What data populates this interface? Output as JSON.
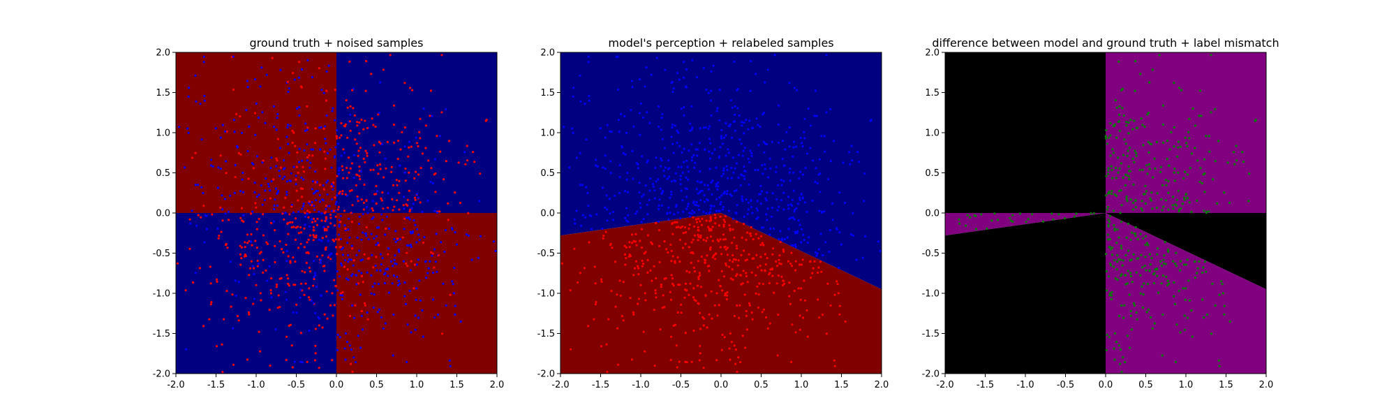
{
  "chart_data": [
    {
      "type": "scatter",
      "title": "ground truth + noised samples",
      "xlim": [
        -2.0,
        2.0
      ],
      "ylim": [
        -2.0,
        2.0
      ],
      "xticks": [
        "-2.0",
        "-1.5",
        "-1.0",
        "-0.5",
        "0.0",
        "0.5",
        "1.0",
        "1.5",
        "2.0"
      ],
      "yticks": [
        "-2.0",
        "-1.5",
        "-1.0",
        "-0.5",
        "0.0",
        "0.5",
        "1.0",
        "1.5",
        "2.0"
      ],
      "background": "quadrant sign(x*y): x*y<0 -> dark red, x*y>=0 -> dark blue",
      "regions": [
        {
          "quadrant": "upper-left",
          "color": "#800000"
        },
        {
          "quadrant": "upper-right",
          "color": "#000080"
        },
        {
          "quadrant": "lower-left",
          "color": "#000080"
        },
        {
          "quadrant": "lower-right",
          "color": "#800000"
        }
      ],
      "series": [
        {
          "color": "#ff0000",
          "n_points": 560,
          "distribution": "mostly in x*y>0 quadrants (upper-right, lower-left), denser near origin"
        },
        {
          "color": "#0000ff",
          "n_points": 560,
          "distribution": "mostly in x*y<0 quadrants (upper-left, lower-right), denser near origin"
        }
      ],
      "grid": false
    },
    {
      "type": "scatter",
      "title": "model's perception + relabeled samples",
      "xlim": [
        -2.0,
        2.0
      ],
      "ylim": [
        -2.0,
        2.0
      ],
      "xticks": [
        "-2.0",
        "-1.5",
        "-1.0",
        "-0.5",
        "0.0",
        "0.5",
        "1.0",
        "1.5",
        "2.0"
      ],
      "yticks": [
        "-2.0",
        "-1.5",
        "-1.0",
        "-0.5",
        "0.0",
        "0.5",
        "1.0",
        "1.5",
        "2.0"
      ],
      "decision_boundary": [
        [
          -2.0,
          -0.28
        ],
        [
          0.0,
          0.0
        ],
        [
          2.0,
          -0.95
        ]
      ],
      "regions": [
        {
          "name": "above boundary",
          "color": "#000080"
        },
        {
          "name": "below boundary",
          "color": "#800000"
        }
      ],
      "series": [
        {
          "color": "#0000ff",
          "n_points": 560,
          "distribution": "relabeled: all points above boundary with x<0"
        },
        {
          "color": "#ff0000",
          "n_points": 560,
          "distribution": "relabeled: x>0 or below boundary"
        }
      ],
      "grid": false
    },
    {
      "type": "scatter",
      "title": "difference between model and ground truth + label mismatch",
      "xlim": [
        -2.0,
        2.0
      ],
      "ylim": [
        -2.0,
        2.0
      ],
      "xticks": [
        "-2.0",
        "-1.5",
        "-1.0",
        "-0.5",
        "0.0",
        "0.5",
        "1.0",
        "1.5",
        "2.0"
      ],
      "yticks": [
        "-2.0",
        "-1.5",
        "-1.0",
        "-0.5",
        "0.0",
        "0.5",
        "1.0",
        "1.5",
        "2.0"
      ],
      "regions": [
        {
          "name": "upper-left",
          "color": "#000000"
        },
        {
          "name": "upper-right",
          "color": "#800080"
        },
        {
          "name": "lower-left wedge above boundary",
          "color": "#800080"
        },
        {
          "name": "lower-left below boundary",
          "color": "#000000"
        },
        {
          "name": "lower-right above boundary",
          "color": "#000000"
        },
        {
          "name": "lower-right below boundary",
          "color": "#800080"
        }
      ],
      "series": [
        {
          "color": "#008000",
          "n_points": 560,
          "distribution": "mismatched labels: near x=0 strip for y>0, lower-left and lower-right quadrants"
        }
      ],
      "grid": false
    }
  ]
}
